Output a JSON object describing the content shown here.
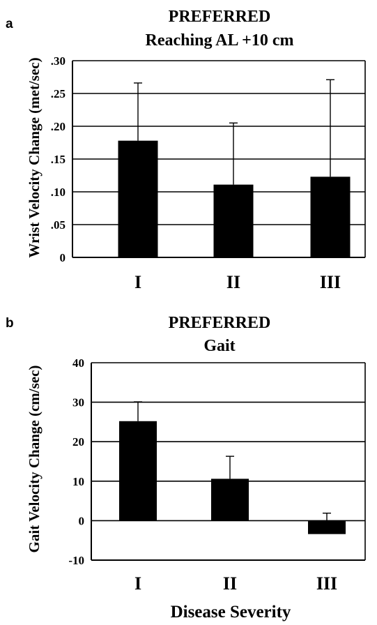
{
  "chart_data": [
    {
      "type": "bar",
      "panel_label": "a",
      "title": "PREFERRED",
      "subtitle": "Reaching AL +10 cm",
      "xlabel": "",
      "ylabel": "Wrist Velocity Change (met/sec)",
      "ylim": [
        0,
        0.3
      ],
      "yticks": [
        0,
        0.05,
        0.1,
        0.15,
        0.2,
        0.25,
        0.3
      ],
      "ytick_labels": [
        "0",
        ".05",
        ".10",
        ".15",
        ".20",
        ".25",
        ".30"
      ],
      "grid": true,
      "categories": [
        "I",
        "II",
        "III"
      ],
      "values": [
        0.178,
        0.111,
        0.123
      ],
      "error_upper": [
        0.266,
        0.205,
        0.271
      ],
      "bar_color": "#000000"
    },
    {
      "type": "bar",
      "panel_label": "b",
      "title": "PREFERRED",
      "subtitle": "Gait",
      "xlabel": "Disease Severity",
      "ylabel": "Gait Velocity Change (cm/sec)",
      "ylim": [
        -10,
        40
      ],
      "yticks": [
        -10,
        0,
        10,
        20,
        30,
        40
      ],
      "ytick_labels": [
        "-10",
        "0",
        "10",
        "20",
        "30",
        "40"
      ],
      "grid": true,
      "categories": [
        "I",
        "II",
        "III"
      ],
      "values": [
        25.2,
        10.6,
        -3.4
      ],
      "error_upper": [
        30.1,
        16.3,
        1.9
      ],
      "bar_color": "#000000"
    }
  ]
}
